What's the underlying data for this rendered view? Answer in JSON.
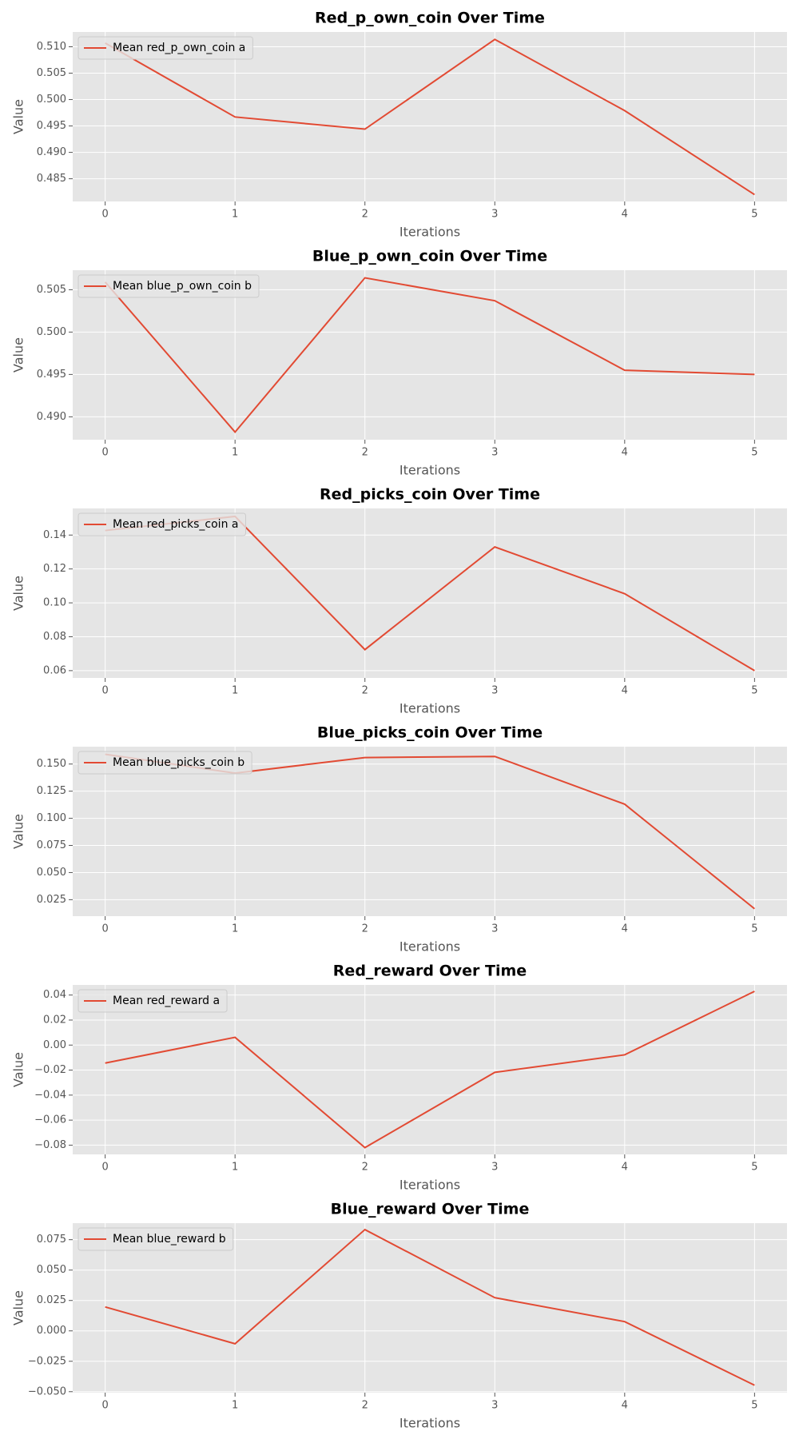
{
  "chart_data": [
    {
      "type": "line",
      "title": "Red_p_own_coin Over Time",
      "xlabel": "Iterations",
      "ylabel": "Value",
      "x": [
        0,
        1,
        2,
        3,
        4,
        5
      ],
      "series": [
        {
          "name": "Mean red_p_own_coin a",
          "color": "#e24a33",
          "values": [
            0.5107,
            0.4967,
            0.4944,
            0.5114,
            0.4979,
            0.482
          ]
        }
      ],
      "xlim": [
        -0.25,
        5.25
      ],
      "xticks": [
        0,
        1,
        2,
        3,
        4,
        5
      ],
      "ylim": [
        0.4807,
        0.5128
      ],
      "yticks": [
        0.485,
        {
          "value": 0.49,
          "label": "0.490"
        },
        0.495,
        {
          "value": 0.5,
          "label": "0.500"
        },
        0.505,
        {
          "value": 0.51,
          "label": "0.510"
        }
      ],
      "grid": true,
      "legend": "upper-left"
    },
    {
      "type": "line",
      "title": "Blue_p_own_coin Over Time",
      "xlabel": "Iterations",
      "ylabel": "Value",
      "x": [
        0,
        1,
        2,
        3,
        4,
        5
      ],
      "series": [
        {
          "name": "Mean blue_p_own_coin b",
          "color": "#e24a33",
          "values": [
            0.5059,
            0.4882,
            0.5064,
            0.5037,
            0.4955,
            0.495
          ]
        }
      ],
      "xlim": [
        -0.25,
        5.25
      ],
      "xticks": [
        0,
        1,
        2,
        3,
        4,
        5
      ],
      "ylim": [
        0.4873,
        0.5073
      ],
      "yticks": [
        {
          "value": 0.49,
          "label": "0.490"
        },
        0.495,
        {
          "value": 0.5,
          "label": "0.500"
        },
        0.505
      ],
      "grid": true,
      "legend": "upper-left"
    },
    {
      "type": "line",
      "title": "Red_picks_coin Over Time",
      "xlabel": "Iterations",
      "ylabel": "Value",
      "x": [
        0,
        1,
        2,
        3,
        4,
        5
      ],
      "series": [
        {
          "name": "Mean red_picks_coin a",
          "color": "#e24a33",
          "values": [
            0.1427,
            0.151,
            0.0724,
            0.133,
            0.1054,
            0.06
          ]
        }
      ],
      "xlim": [
        -0.25,
        5.25
      ],
      "xticks": [
        0,
        1,
        2,
        3,
        4,
        5
      ],
      "ylim": [
        0.0557,
        0.1557
      ],
      "yticks": [
        0.06,
        0.08,
        {
          "value": 0.1,
          "label": "0.10"
        },
        0.12,
        0.14
      ],
      "grid": true,
      "legend": "upper-left"
    },
    {
      "type": "line",
      "title": "Blue_picks_coin Over Time",
      "xlabel": "Iterations",
      "ylabel": "Value",
      "x": [
        0,
        1,
        2,
        3,
        4,
        5
      ],
      "series": [
        {
          "name": "Mean blue_picks_coin b",
          "color": "#e24a33",
          "values": [
            0.159,
            0.1416,
            0.156,
            0.157,
            0.113,
            0.0166
          ]
        }
      ],
      "xlim": [
        -0.25,
        5.25
      ],
      "xticks": [
        0,
        1,
        2,
        3,
        4,
        5
      ],
      "ylim": [
        0.0098,
        0.166
      ],
      "yticks": [
        0.025,
        {
          "value": 0.05,
          "label": "0.050"
        },
        0.075,
        {
          "value": 0.1,
          "label": "0.100"
        },
        0.125,
        {
          "value": 0.15,
          "label": "0.150"
        }
      ],
      "grid": true,
      "legend": "upper-left"
    },
    {
      "type": "line",
      "title": "Red_reward Over Time",
      "xlabel": "Iterations",
      "ylabel": "Value",
      "x": [
        0,
        1,
        2,
        3,
        4,
        5
      ],
      "series": [
        {
          "name": "Mean red_reward a",
          "color": "#e24a33",
          "values": [
            -0.0144,
            0.0062,
            -0.082,
            -0.0218,
            -0.0078,
            0.043
          ]
        }
      ],
      "xlim": [
        -0.25,
        5.25
      ],
      "xticks": [
        0,
        1,
        2,
        3,
        4,
        5
      ],
      "ylim": [
        -0.0874,
        0.0481
      ],
      "yticks": [
        {
          "value": -0.08,
          "label": "−0.08"
        },
        {
          "value": -0.06,
          "label": "−0.06"
        },
        {
          "value": -0.04,
          "label": "−0.04"
        },
        {
          "value": -0.02,
          "label": "−0.02"
        },
        {
          "value": 0,
          "label": "0.00"
        },
        0.02,
        0.04
      ],
      "grid": true,
      "legend": "upper-left"
    },
    {
      "type": "line",
      "title": "Blue_reward Over Time",
      "xlabel": "Iterations",
      "ylabel": "Value",
      "x": [
        0,
        1,
        2,
        3,
        4,
        5
      ],
      "series": [
        {
          "name": "Mean blue_reward b",
          "color": "#e24a33",
          "values": [
            0.0197,
            -0.0106,
            0.0833,
            0.0273,
            0.0076,
            -0.0447
          ]
        }
      ],
      "xlim": [
        -0.25,
        5.25
      ],
      "xticks": [
        0,
        1,
        2,
        3,
        4,
        5
      ],
      "ylim": [
        -0.0508,
        0.0886
      ],
      "yticks": [
        {
          "value": -0.05,
          "label": "−0.050"
        },
        {
          "value": -0.025,
          "label": "−0.025"
        },
        {
          "value": 0,
          "label": "0.000"
        },
        0.025,
        {
          "value": 0.05,
          "label": "0.050"
        },
        0.075
      ],
      "grid": true,
      "legend": "upper-left"
    }
  ]
}
